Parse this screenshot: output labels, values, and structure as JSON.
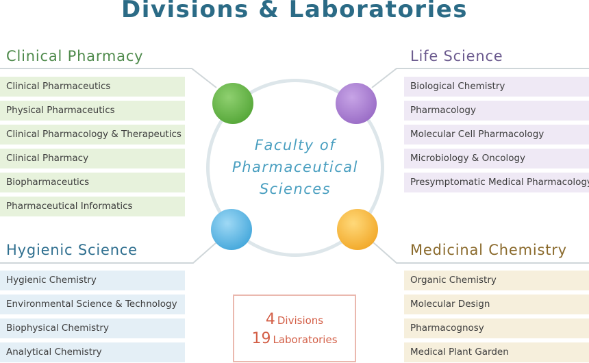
{
  "page_title": "Divisions & Laboratories",
  "center": {
    "lines": [
      "Faculty of",
      "Pharmaceutical",
      "Sciences"
    ]
  },
  "divisions": {
    "clinical_pharmacy": {
      "name": "Clinical Pharmacy",
      "color": "#6bbd4a",
      "labs": [
        "Clinical Pharmaceutics",
        "Physical Pharmaceutics",
        "Clinical Pharmacology & Therapeutics",
        "Clinical Pharmacy",
        "Biopharmaceutics",
        "Pharmaceutical Informatics"
      ]
    },
    "life_science": {
      "name": "Life Science",
      "color": "#b08bd6",
      "labs": [
        "Biological Chemistry",
        "Pharmacology",
        "Molecular Cell Pharmacology",
        "Microbiology & Oncology",
        "Presymptomatic Medical Pharmacology"
      ]
    },
    "hygienic_science": {
      "name": "Hygienic Science",
      "color": "#5fb7e4",
      "labs": [
        "Hygienic Chemistry",
        "Environmental Science & Technology",
        "Biophysical Chemistry",
        "Analytical Chemistry"
      ]
    },
    "medicinal_chemistry": {
      "name": "Medicinal Chemistry",
      "color": "#f5bd45",
      "labs": [
        "Organic Chemistry",
        "Molecular Design",
        "Pharmacognosy",
        "Medical Plant Garden"
      ]
    }
  },
  "summary": {
    "divisions_count": "4",
    "divisions_label": "Divisions",
    "labs_count": "19",
    "labs_label": "Laboratories"
  }
}
